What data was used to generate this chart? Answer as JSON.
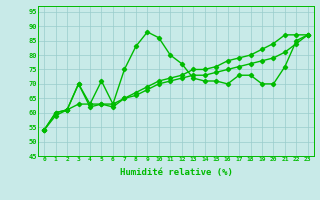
{
  "x_values": [
    0,
    1,
    2,
    3,
    4,
    5,
    6,
    7,
    8,
    9,
    10,
    11,
    12,
    13,
    14,
    15,
    16,
    17,
    18,
    19,
    20,
    21,
    22,
    23
  ],
  "line1": [
    54,
    60,
    61,
    70,
    63,
    71,
    63,
    75,
    83,
    88,
    86,
    80,
    77,
    72,
    71,
    71,
    70,
    73,
    73,
    70,
    70,
    76,
    85,
    87
  ],
  "line2": [
    54,
    60,
    61,
    63,
    63,
    63,
    63,
    65,
    66,
    68,
    70,
    71,
    72,
    73,
    73,
    74,
    75,
    76,
    77,
    78,
    79,
    81,
    84,
    87
  ],
  "line3": [
    54,
    59,
    61,
    70,
    62,
    63,
    62,
    65,
    67,
    69,
    71,
    72,
    73,
    75,
    75,
    76,
    78,
    79,
    80,
    82,
    84,
    87,
    87,
    87
  ],
  "ylim": [
    45,
    97
  ],
  "yticks": [
    45,
    50,
    55,
    60,
    65,
    70,
    75,
    80,
    85,
    90,
    95
  ],
  "xlim": [
    -0.5,
    23.5
  ],
  "xlabel": "Humidité relative (%)",
  "line_color": "#00BB00",
  "bg_color": "#C8EAE8",
  "grid_color": "#99CCCC",
  "marker": "D",
  "marker_size": 2.2,
  "line_width": 1.0
}
